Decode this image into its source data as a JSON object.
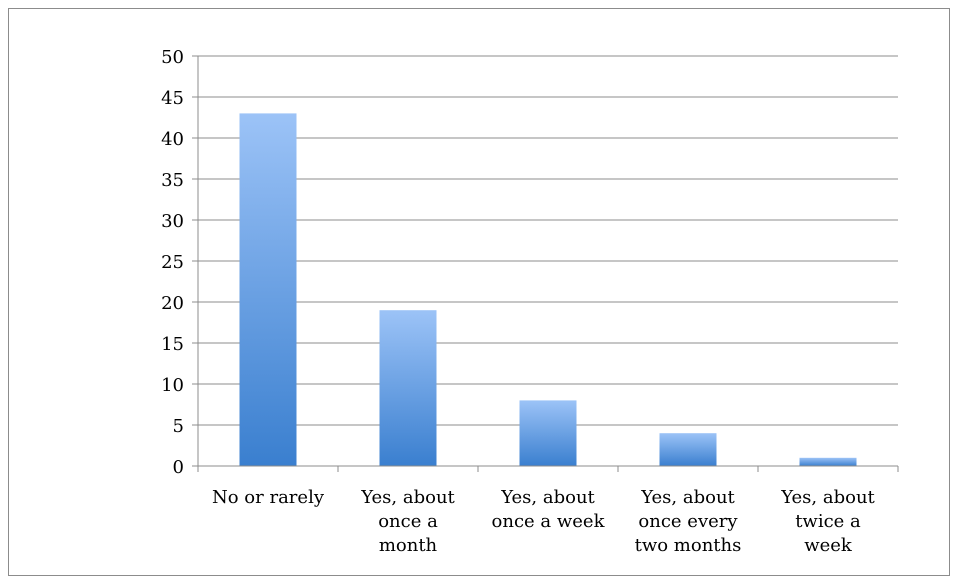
{
  "chart_data": {
    "type": "bar",
    "categories": [
      [
        "No or rarely"
      ],
      [
        "Yes, about",
        "once a",
        "month"
      ],
      [
        "Yes, about",
        "once a week"
      ],
      [
        "Yes, about",
        "once every",
        "two months"
      ],
      [
        "Yes, about",
        "twice a",
        "week"
      ]
    ],
    "values": [
      43,
      19,
      8,
      4,
      1
    ],
    "ylim": [
      0,
      50
    ],
    "yticks": [
      0,
      5,
      10,
      15,
      20,
      25,
      30,
      35,
      40,
      45,
      50
    ],
    "title": "",
    "xlabel": "",
    "ylabel": "",
    "grid": true,
    "legend": "none",
    "colors": {
      "bar_top": "#9cc3f7",
      "bar_bottom": "#3a7fcf",
      "gridline": "#8c8c8c",
      "axis": "#8c8c8c",
      "frame": "#8c8c8c"
    }
  }
}
